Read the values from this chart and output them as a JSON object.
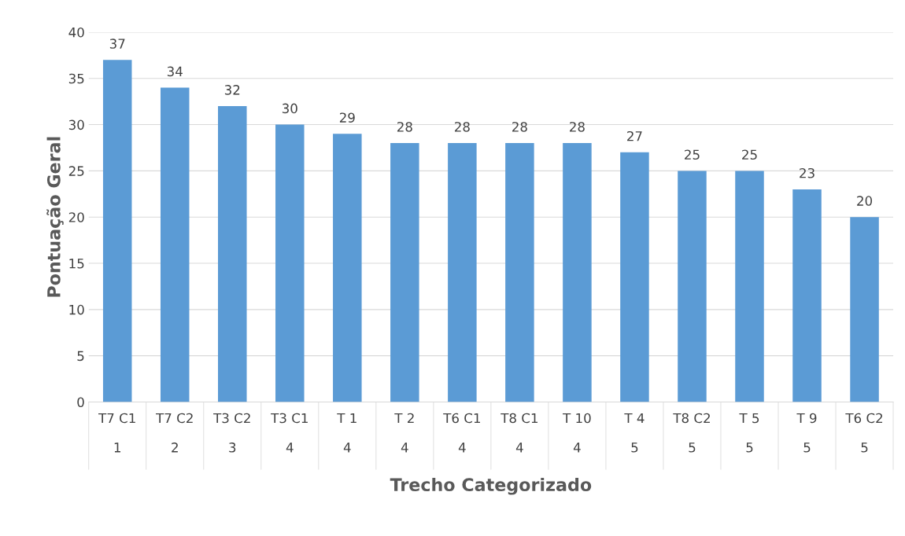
{
  "chart_data": {
    "type": "bar",
    "xlabel": "Trecho Categorizado",
    "ylabel": "Pontuação Geral",
    "categories": [
      "T7 C1\n\n1",
      "T7 C2\n\n2",
      "T3 C2\n\n3",
      "T3 C1\n\n4",
      "T 1\n\n4",
      "T 2\n\n4",
      "T6 C1\n\n4",
      "T8 C1\n\n4",
      "T 10\n\n4",
      "T 4\n\n5",
      "T8 C2\n\n5",
      "T 5\n\n5",
      "T 9\n\n5",
      "T6 C2\n\n5"
    ],
    "values": [
      37,
      34,
      32,
      30,
      29,
      28,
      28,
      28,
      28,
      27,
      25,
      25,
      23,
      20
    ],
    "color": "#5b9bd5",
    "ylim": [
      0,
      40
    ],
    "yticks": [
      0,
      5,
      10,
      15,
      20,
      25,
      30,
      35,
      40
    ],
    "grid": "y",
    "data_labels": true
  }
}
